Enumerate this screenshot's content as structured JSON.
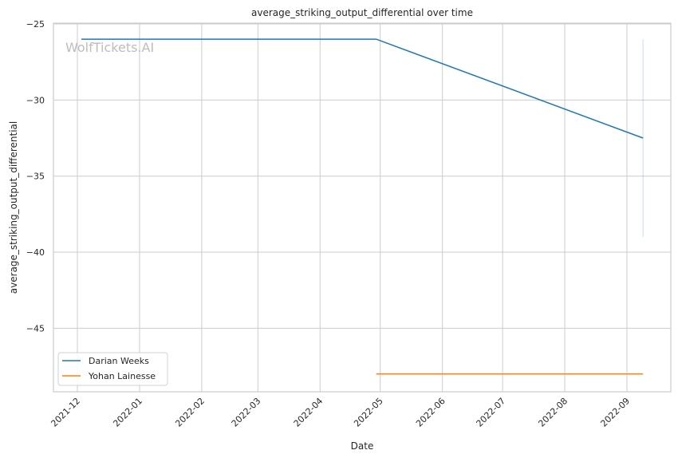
{
  "chart_data": {
    "type": "line",
    "title": "average_striking_output_differential over time",
    "xlabel": "Date",
    "ylabel": "average_striking_output_differential",
    "watermark": "WolfTickets.AI",
    "xlim": [
      "2021-11-19",
      "2022-09-23"
    ],
    "ylim": [
      -49.2,
      -25
    ],
    "grid": true,
    "legend_position": "lower-left",
    "x_ticks": [
      "2021-12",
      "2022-01",
      "2022-02",
      "2022-03",
      "2022-04",
      "2022-05",
      "2022-06",
      "2022-07",
      "2022-08",
      "2022-09"
    ],
    "y_ticks": [
      -25,
      -30,
      -35,
      -40,
      -45
    ],
    "series": [
      {
        "name": "Darian Weeks",
        "color": "#1f77b4",
        "points": [
          [
            "2021-12-03",
            -26
          ],
          [
            "2022-04-29",
            -26
          ],
          [
            "2022-09-09",
            -32.5
          ]
        ],
        "error_band": {
          "x": "2022-09-09",
          "low": -39,
          "high": -26
        }
      },
      {
        "name": "Yohan Lainesse",
        "color": "#ff7f0e",
        "points": [
          [
            "2022-04-29",
            -48
          ],
          [
            "2022-09-09",
            -48
          ]
        ]
      }
    ]
  }
}
